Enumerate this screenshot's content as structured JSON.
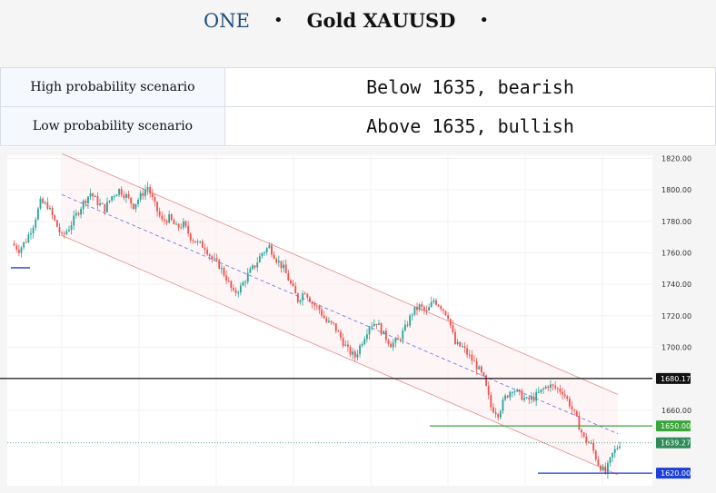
{
  "header": {
    "brand": "ONE",
    "separator": "•",
    "title": "Gold XAUUSD",
    "separator_end": "•"
  },
  "scenarios": [
    {
      "label": "High probability scenario",
      "value": "Below 1635, bearish"
    },
    {
      "label": "Low probability scenario",
      "value": "Above 1635, bullish"
    }
  ],
  "chart_data": {
    "type": "candlestick",
    "ylim": [
      1612,
      1822
    ],
    "y_ticks": [
      1820,
      1800,
      1780,
      1760,
      1740,
      1720,
      1700,
      1680,
      1660
    ],
    "close_path": [
      1766,
      1762,
      1768,
      1778,
      1792,
      1790,
      1780,
      1770,
      1776,
      1784,
      1792,
      1798,
      1792,
      1788,
      1796,
      1800,
      1796,
      1790,
      1796,
      1802,
      1790,
      1780,
      1782,
      1776,
      1778,
      1770,
      1766,
      1764,
      1756,
      1752,
      1744,
      1734,
      1738,
      1746,
      1752,
      1760,
      1764,
      1756,
      1750,
      1740,
      1730,
      1736,
      1728,
      1724,
      1716,
      1714,
      1706,
      1698,
      1694,
      1704,
      1714,
      1716,
      1708,
      1702,
      1704,
      1712,
      1722,
      1726,
      1722,
      1730,
      1726,
      1720,
      1702,
      1700,
      1694,
      1688,
      1680,
      1662,
      1658,
      1668,
      1674,
      1670,
      1666,
      1668,
      1672,
      1676,
      1674,
      1672,
      1664,
      1654,
      1642,
      1638,
      1626,
      1620,
      1632,
      1639
    ],
    "levels": [
      {
        "value": 1680.17,
        "label": "1680.17",
        "color": "#111111"
      },
      {
        "value": 1650.0,
        "label": "1650.00",
        "color": "#3aa63a"
      },
      {
        "value": 1639.27,
        "label": "1639.27",
        "color": "#2e8b57"
      },
      {
        "value": 1620.0,
        "label": "1620.00",
        "color": "#1c3fd6"
      }
    ],
    "extra_marker": {
      "value": 1750.5,
      "color": "#1c3fd6"
    },
    "channel": {
      "start_index": 7,
      "upper": [
        1823,
        1670
      ],
      "mid": [
        1797,
        1645
      ],
      "lower": [
        1771,
        1619
      ],
      "color": "#e58a8a",
      "mid_color": "#5b6ee8"
    },
    "up_color": "#26a69a",
    "down_color": "#ef5350"
  }
}
